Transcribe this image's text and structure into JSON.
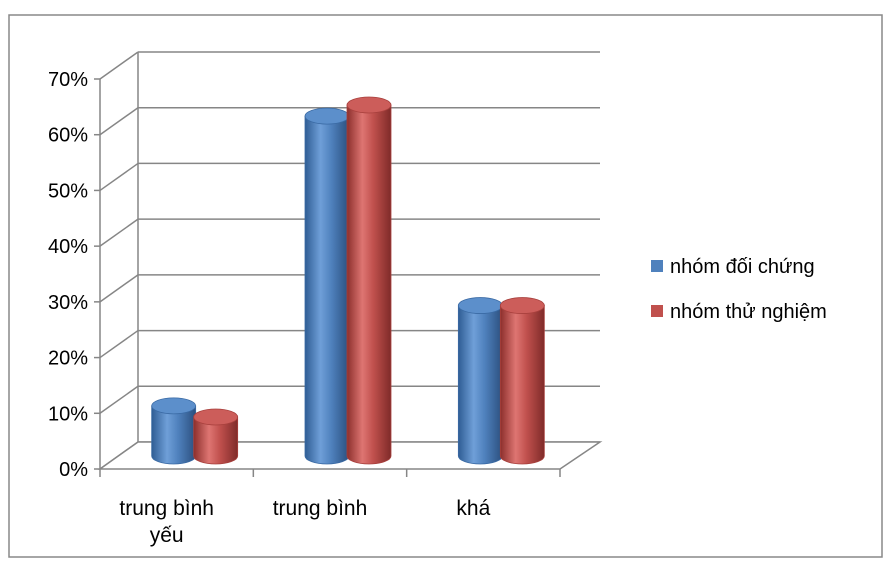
{
  "chart_data": {
    "type": "bar",
    "style": "3d-cylinder",
    "categories": [
      [
        "trung bình",
        "yếu"
      ],
      [
        "trung bình"
      ],
      [
        "khá"
      ]
    ],
    "series": [
      {
        "name": "nhóm đối chứng",
        "color": "#4f81bd",
        "values": [
          0.09,
          0.61,
          0.27
        ]
      },
      {
        "name": "nhóm thử nghiệm",
        "color": "#c0504d",
        "values": [
          0.07,
          0.63,
          0.27
        ]
      }
    ],
    "yticks": [
      "0%",
      "10%",
      "20%",
      "30%",
      "40%",
      "50%",
      "60%",
      "70%"
    ],
    "ylim": [
      0,
      0.7
    ],
    "grid": true,
    "legend_position": "right"
  }
}
